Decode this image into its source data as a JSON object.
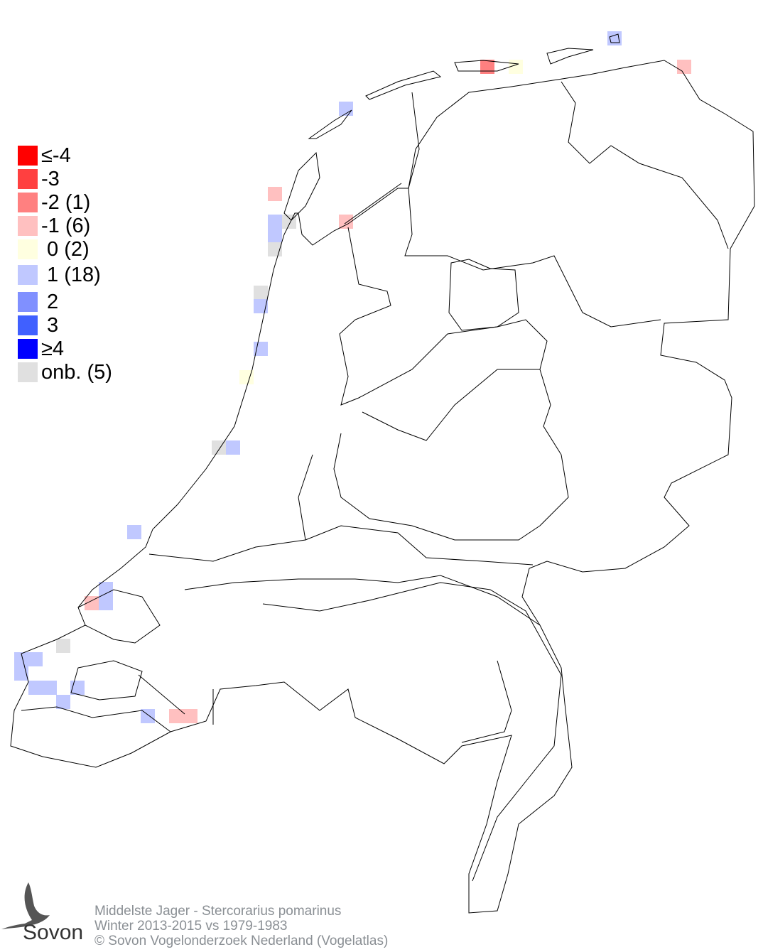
{
  "legend": [
    {
      "label": "≤-4",
      "color": "#ff0000"
    },
    {
      "label": "-3",
      "color": "#ff4040"
    },
    {
      "label": "-2 (1)",
      "color": "#ff8080"
    },
    {
      "label": "-1 (6)",
      "color": "#ffc0c0"
    },
    {
      "label": " 0 (2)",
      "color": "#ffffe0"
    },
    {
      "label": " 1 (18)",
      "color": "#c0c8ff"
    },
    {
      "label": " 2",
      "color": "#8090ff"
    },
    {
      "label": " 3",
      "color": "#4060ff"
    },
    {
      "label": "≥4",
      "color": "#0000ff"
    },
    {
      "label": "onb. (5)",
      "color": "#e0e0e0"
    }
  ],
  "footer": {
    "species": "Middelste Jager - Stercorarius pomarinus",
    "period": "Winter 2013-2015 vs 1979-1983",
    "copyright": "© Sovon Vogelonderzoek Nederland (Vogelatlas)"
  },
  "logo": {
    "text": "Sovon"
  }
}
